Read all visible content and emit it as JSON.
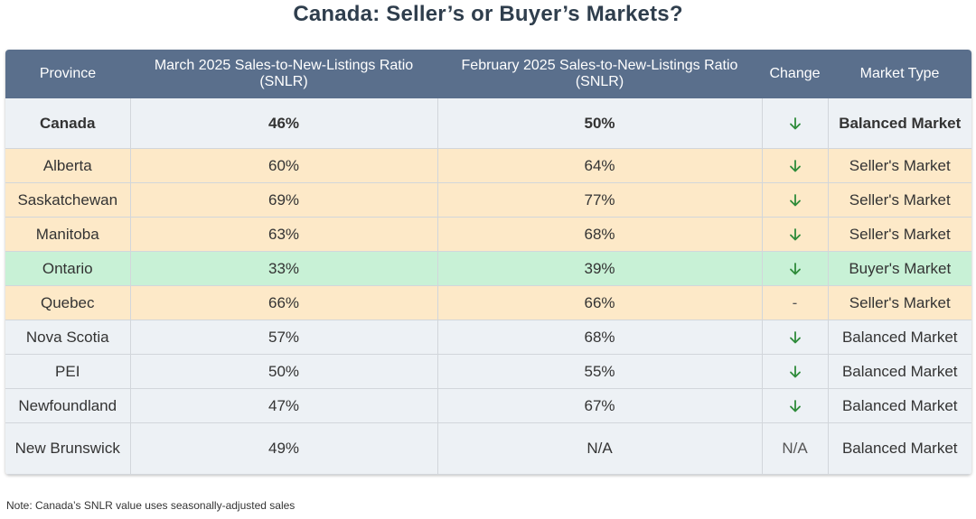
{
  "title": "Canada: Seller’s or Buyer’s Markets?",
  "chart_data": {
    "type": "table",
    "columns": [
      "Province",
      "March 2025 Sales-to-New-Listings Ratio (SNLR)",
      "February 2025 Sales-to-New-Listings Ratio (SNLR)",
      "Change",
      "Market Type"
    ],
    "rows": [
      {
        "province": "Canada",
        "march": "46%",
        "february": "50%",
        "change": "down",
        "market": "Balanced Market",
        "bg": "#edf1f5",
        "bold": true
      },
      {
        "province": "Alberta",
        "march": "60%",
        "february": "64%",
        "change": "down",
        "market": "Seller's Market",
        "bg": "#fde9c8"
      },
      {
        "province": "Saskatchewan",
        "march": "69%",
        "february": "77%",
        "change": "down",
        "market": "Seller's Market",
        "bg": "#fde9c8"
      },
      {
        "province": "Manitoba",
        "march": "63%",
        "february": "68%",
        "change": "down",
        "market": "Seller's Market",
        "bg": "#fde9c8"
      },
      {
        "province": "Ontario",
        "march": "33%",
        "february": "39%",
        "change": "down",
        "market": "Buyer's Market",
        "bg": "#c8f1d6"
      },
      {
        "province": "Quebec",
        "march": "66%",
        "february": "66%",
        "change": "-",
        "market": "Seller's Market",
        "bg": "#fde9c8"
      },
      {
        "province": "Nova Scotia",
        "march": "57%",
        "february": "68%",
        "change": "down",
        "market": "Balanced Market",
        "bg": "#edf1f5"
      },
      {
        "province": "PEI",
        "march": "50%",
        "february": "55%",
        "change": "down",
        "market": "Balanced Market",
        "bg": "#edf1f5"
      },
      {
        "province": "Newfoundland",
        "march": "47%",
        "february": "67%",
        "change": "down",
        "market": "Balanced Market",
        "bg": "#edf1f5"
      },
      {
        "province": "New Brunswick",
        "march": "49%",
        "february": "N/A",
        "change": "N/A",
        "market": "Balanced Market",
        "bg": "#edf1f5"
      }
    ],
    "colors": {
      "header": "#5a6f8c",
      "balanced": "#edf1f5",
      "sellers": "#fde9c8",
      "buyers": "#c8f1d6",
      "down_arrow": "#2e8b3a"
    }
  },
  "note": "Note: Canada’s SNLR value uses seasonally-adjusted sales"
}
